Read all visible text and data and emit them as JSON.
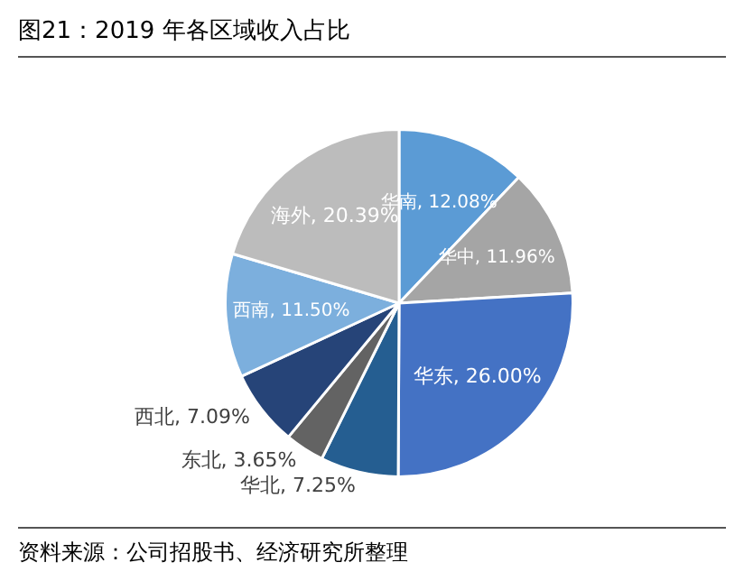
{
  "chart_data": {
    "type": "pie",
    "title": "图21：2019 年各区域收入占比",
    "categories": [
      "华南",
      "华中",
      "华东",
      "华北",
      "东北",
      "西北",
      "西南",
      "海外"
    ],
    "values": [
      12.08,
      11.96,
      26.0,
      7.25,
      3.65,
      7.09,
      11.5,
      20.39
    ],
    "value_labels": [
      "12.08%",
      "11.96%",
      "26.00%",
      "7.25%",
      "3.65%",
      "7.09%",
      "11.50%",
      "20.39%"
    ],
    "colors": [
      "#5b9bd5",
      "#a5a5a5",
      "#4472c4",
      "#255e91",
      "#636363",
      "#264478",
      "#7cafdd",
      "#bcbcbc"
    ],
    "legend": false,
    "annotations": [
      "资料来源：公司招股书、经济研究所整理"
    ]
  }
}
